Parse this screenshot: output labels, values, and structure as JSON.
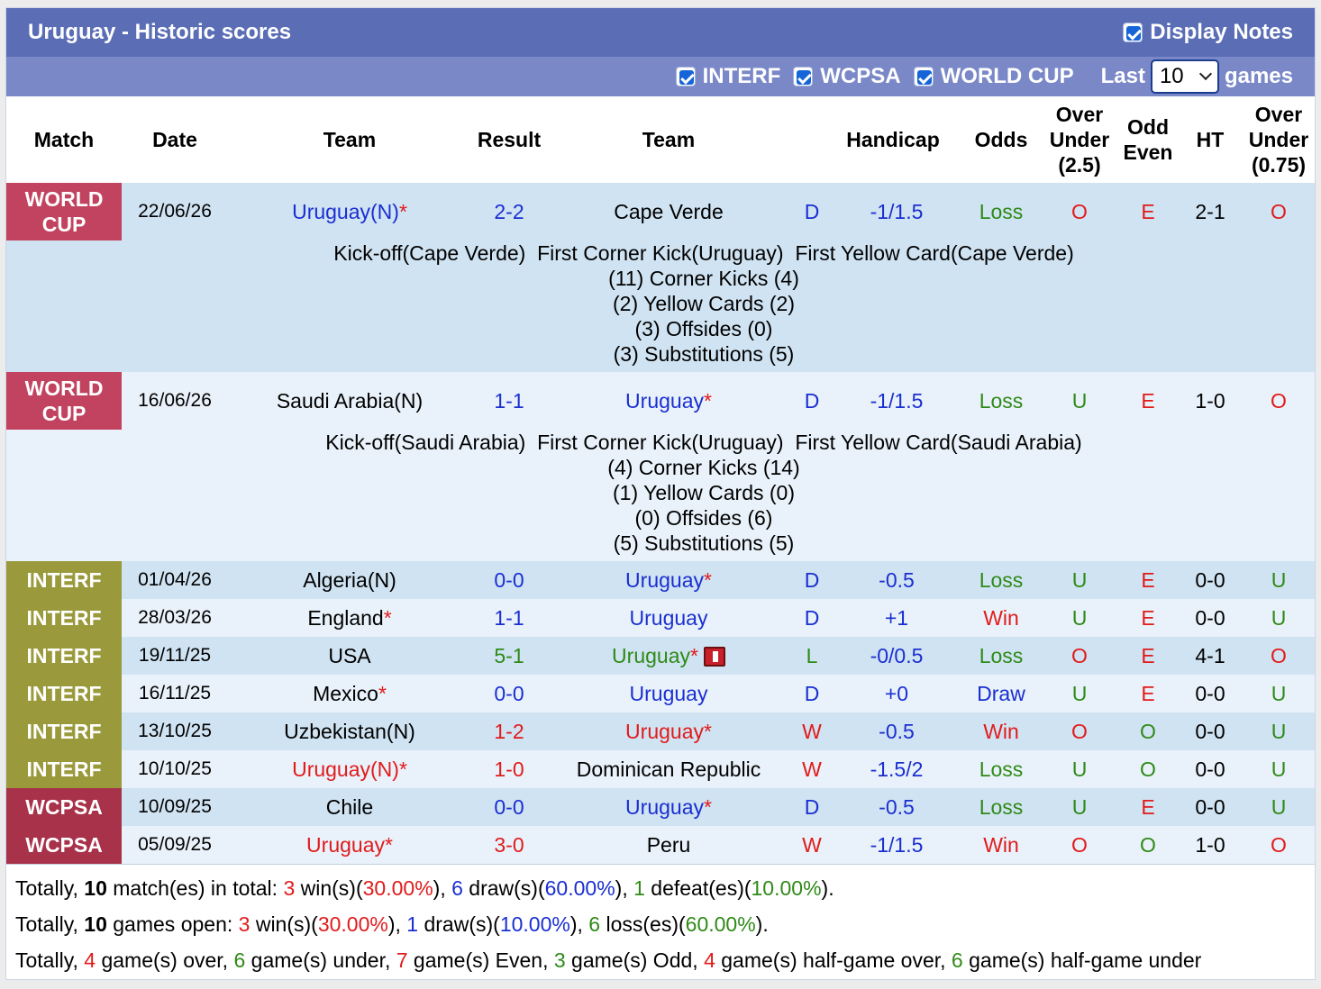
{
  "header": {
    "title": "Uruguay - Historic scores",
    "display_notes_label": "Display Notes",
    "filters": [
      "INTERF",
      "WCPSA",
      "WORLD CUP"
    ],
    "last_label": "Last",
    "last_value": "10",
    "games_label": "games"
  },
  "columns": {
    "match": "Match",
    "date": "Date",
    "team1": "Team",
    "result": "Result",
    "team2": "Team",
    "handicap": "Handicap",
    "odds": "Odds",
    "ou_1": "Over",
    "ou_2": "Under",
    "ou_3": "(2.5)",
    "oe_1": "Odd",
    "oe_2": "Even",
    "ht": "HT",
    "ou2_1": "Over",
    "ou2_2": "Under",
    "ou2_3": "(0.75)"
  },
  "games": [
    {
      "comp1": "WORLD",
      "comp2": "CUP",
      "date": "22/06/26",
      "team1": "Uruguay(N)",
      "team1_star": "*",
      "result": "2-2",
      "team2": "Cape Verde",
      "team2_star": "",
      "wdl": "D",
      "handicap": "-1/1.5",
      "odds": "Loss",
      "ou": "O",
      "oe": "E",
      "ht": "2-1",
      "ou2": "O"
    },
    {
      "comp1": "WORLD",
      "comp2": "CUP",
      "date": "16/06/26",
      "team1": "Saudi Arabia(N)",
      "team1_star": "",
      "result": "1-1",
      "team2": "Uruguay",
      "team2_star": "*",
      "wdl": "D",
      "handicap": "-1/1.5",
      "odds": "Loss",
      "ou": "U",
      "oe": "E",
      "ht": "1-0",
      "ou2": "O"
    },
    {
      "comp1": "INTERF",
      "date": "01/04/26",
      "team1": "Algeria(N)",
      "team1_star": "",
      "result": "0-0",
      "team2": "Uruguay",
      "team2_star": "*",
      "wdl": "D",
      "handicap": "-0.5",
      "odds": "Loss",
      "ou": "U",
      "oe": "E",
      "ht": "0-0",
      "ou2": "U"
    },
    {
      "comp1": "INTERF",
      "date": "28/03/26",
      "team1": "England",
      "team1_star": "*",
      "result": "1-1",
      "team2": "Uruguay",
      "team2_star": "",
      "wdl": "D",
      "handicap": "+1",
      "odds": "Win",
      "ou": "U",
      "oe": "E",
      "ht": "0-0",
      "ou2": "U"
    },
    {
      "comp1": "INTERF",
      "date": "19/11/25",
      "team1": "USA",
      "team1_star": "",
      "result": "5-1",
      "team2": "Uruguay",
      "team2_star": "*",
      "wdl": "L",
      "handicap": "-0/0.5",
      "odds": "Loss",
      "ou": "O",
      "oe": "E",
      "ht": "4-1",
      "ou2": "O"
    },
    {
      "comp1": "INTERF",
      "date": "16/11/25",
      "team1": "Mexico",
      "team1_star": "*",
      "result": "0-0",
      "team2": "Uruguay",
      "team2_star": "",
      "wdl": "D",
      "handicap": "+0",
      "odds": "Draw",
      "ou": "U",
      "oe": "E",
      "ht": "0-0",
      "ou2": "U"
    },
    {
      "comp1": "INTERF",
      "date": "13/10/25",
      "team1": "Uzbekistan(N)",
      "team1_star": "",
      "result": "1-2",
      "team2": "Uruguay",
      "team2_star": "*",
      "wdl": "W",
      "handicap": "-0.5",
      "odds": "Win",
      "ou": "O",
      "oe": "O",
      "ht": "0-0",
      "ou2": "U"
    },
    {
      "comp1": "INTERF",
      "date": "10/10/25",
      "team1": "Uruguay(N)",
      "team1_star": "*",
      "result": "1-0",
      "team2": "Dominican Republic",
      "team2_star": "",
      "wdl": "W",
      "handicap": "-1.5/2",
      "odds": "Loss",
      "ou": "U",
      "oe": "O",
      "ht": "0-0",
      "ou2": "U"
    },
    {
      "comp1": "WCPSA",
      "date": "10/09/25",
      "team1": "Chile",
      "team1_star": "",
      "result": "0-0",
      "team2": "Uruguay",
      "team2_star": "*",
      "wdl": "D",
      "handicap": "-0.5",
      "odds": "Loss",
      "ou": "U",
      "oe": "E",
      "ht": "0-0",
      "ou2": "U"
    },
    {
      "comp1": "WCPSA",
      "date": "05/09/25",
      "team1": "Uruguay",
      "team1_star": "*",
      "result": "3-0",
      "team2": "Peru",
      "team2_star": "",
      "wdl": "W",
      "handicap": "-1/1.5",
      "odds": "Win",
      "ou": "O",
      "oe": "O",
      "ht": "1-0",
      "ou2": "O"
    }
  ],
  "notes": [
    [
      "Kick-off(Cape Verde)  First Corner Kick(Uruguay)  First Yellow Card(Cape Verde)",
      "(11) Corner Kicks (4)",
      "(2) Yellow Cards (2)",
      "(3) Offsides (0)",
      "(3) Substitutions (5)"
    ],
    [
      "Kick-off(Saudi Arabia)  First Corner Kick(Uruguay)  First Yellow Card(Saudi Arabia)",
      "(4) Corner Kicks (14)",
      "(1) Yellow Cards (0)",
      "(0) Offsides (6)",
      "(5) Substitutions (5)"
    ]
  ],
  "summary": {
    "line1": {
      "prefix": "Totally, ",
      "total": "10",
      "a": " match(es) in total: ",
      "wins": "3",
      "b": " win(s)(",
      "win_pct": "30.00%",
      "c": "), ",
      "draws": "6",
      "d": " draw(s)(",
      "draw_pct": "60.00%",
      "e": "), ",
      "defeats": "1",
      "f": " defeat(es)(",
      "defeat_pct": "10.00%",
      "g": ")."
    },
    "line2": {
      "prefix": "Totally, ",
      "total": "10",
      "a": " games open: ",
      "wins": "3",
      "b": " win(s)(",
      "win_pct": "30.00%",
      "c": "), ",
      "draws": "1",
      "d": " draw(s)(",
      "draw_pct": "10.00%",
      "e": "), ",
      "losses": "6",
      "f": " loss(es)(",
      "loss_pct": "60.00%",
      "g": ")."
    },
    "line3": {
      "prefix": "Totally, ",
      "over": "4",
      "a": " game(s) over, ",
      "under": "6",
      "b": " game(s) under, ",
      "even": "7",
      "c": " game(s) Even, ",
      "odd": "3",
      "d": " game(s) Odd, ",
      "hg_over": "4",
      "e": " game(s) half-game over, ",
      "hg_under": "6",
      "f": " game(s) half-game under"
    }
  },
  "colors": {
    "title_bar": "#5a6db5",
    "filter_bar": "#7a88c8",
    "world_cup": "#c2435f",
    "interf": "#9a9a3c",
    "wcpsa": "#a8324a",
    "row_dark": "#d0e3f2",
    "row_light": "#e9f2fa",
    "win_red": "#e11b1b",
    "draw_blue": "#1a2fd1",
    "loss_green": "#2e8a17"
  }
}
